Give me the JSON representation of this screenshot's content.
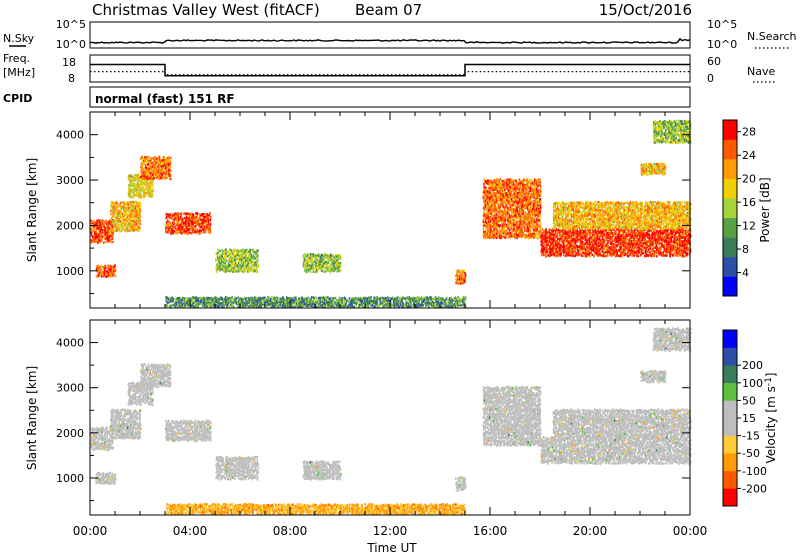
{
  "header": {
    "site": "Christmas Valley West (fitACF)",
    "beam": "Beam 07",
    "date": "15/Oct/2016"
  },
  "noise_panel": {
    "left_label": "N.Sky",
    "right_label": "N.Search",
    "tick_top_left": "10^5",
    "tick_bottom_left": "10^0",
    "tick_top_right": "10^5",
    "tick_bottom_right": "10^0"
  },
  "freq_panel": {
    "left_label_1": "Freq.",
    "left_label_2": "[MHz]",
    "right_label": "Nave",
    "tick_top_left": "18",
    "tick_bottom_left": "8",
    "tick_top_right": "60",
    "tick_bottom_right": "0"
  },
  "cpid": {
    "label": "CPID",
    "text": "normal (fast) 151 RF"
  },
  "colors": {
    "power_scale": [
      "#0000ff",
      "#2e4fa8",
      "#3a7d5a",
      "#5aa045",
      "#a6d23a",
      "#f0d000",
      "#ff9a00",
      "#ff5a00",
      "#ff0000"
    ],
    "velocity_scale": [
      "#ff0000",
      "#ff5a00",
      "#ff9a00",
      "#ffcc33",
      "#bebebe",
      "#bebebe",
      "#60c040",
      "#3a7d5a",
      "#2e4fa8",
      "#0000ff"
    ],
    "ground_scatter": "#bebebe"
  },
  "chart_data": [
    {
      "type": "heatmap",
      "name": "power",
      "xlabel": "",
      "ylabel": "Slant Range [km]",
      "x_ticks": [
        "00:00",
        "04:00",
        "08:00",
        "12:00",
        "16:00",
        "20:00",
        "00:00"
      ],
      "xlim_hours": [
        0,
        24
      ],
      "y_ticks": [
        1000,
        2000,
        3000,
        4000
      ],
      "ylim": [
        180,
        4500
      ],
      "colorbar": {
        "label": "Power [dB]",
        "ticks": [
          4,
          8,
          12,
          16,
          20,
          24,
          28
        ],
        "range": [
          0,
          30
        ]
      },
      "regions": [
        {
          "t0": 0.0,
          "t1": 0.9,
          "r0": 1600,
          "r1": 2100,
          "level": 26
        },
        {
          "t0": 0.2,
          "t1": 1.0,
          "r0": 850,
          "r1": 1100,
          "level": 25
        },
        {
          "t0": 0.8,
          "t1": 2.0,
          "r0": 1850,
          "r1": 2500,
          "level": 20
        },
        {
          "t0": 1.5,
          "t1": 2.5,
          "r0": 2600,
          "r1": 3100,
          "level": 18
        },
        {
          "t0": 2.0,
          "t1": 3.2,
          "r0": 3000,
          "r1": 3500,
          "level": 24
        },
        {
          "t0": 3.0,
          "t1": 4.8,
          "r0": 1800,
          "r1": 2250,
          "level": 26
        },
        {
          "t0": 5.0,
          "t1": 6.7,
          "r0": 950,
          "r1": 1450,
          "level": 14
        },
        {
          "t0": 8.5,
          "t1": 10.0,
          "r0": 950,
          "r1": 1350,
          "level": 14
        },
        {
          "t0": 3.0,
          "t1": 15.0,
          "r0": 180,
          "r1": 400,
          "level": 10
        },
        {
          "t0": 14.6,
          "t1": 15.0,
          "r0": 700,
          "r1": 1000,
          "level": 24
        },
        {
          "t0": 15.7,
          "t1": 18.0,
          "r0": 1700,
          "r1": 3000,
          "level": 24
        },
        {
          "t0": 18.0,
          "t1": 24.0,
          "r0": 1300,
          "r1": 1900,
          "level": 27
        },
        {
          "t0": 18.5,
          "t1": 24.0,
          "r0": 1900,
          "r1": 2500,
          "level": 20
        },
        {
          "t0": 22.0,
          "t1": 23.0,
          "r0": 3100,
          "r1": 3350,
          "level": 20
        },
        {
          "t0": 22.5,
          "t1": 24.0,
          "r0": 3800,
          "r1": 4300,
          "level": 14
        }
      ]
    },
    {
      "type": "heatmap",
      "name": "velocity",
      "xlabel": "Time UT",
      "ylabel": "Slant Range [km]",
      "x_ticks": [
        "00:00",
        "04:00",
        "08:00",
        "12:00",
        "16:00",
        "20:00",
        "00:00"
      ],
      "xlim_hours": [
        0,
        24
      ],
      "y_ticks": [
        1000,
        2000,
        3000,
        4000
      ],
      "ylim": [
        180,
        4500
      ],
      "colorbar": {
        "label": "Velocity [m s^-1]",
        "ticks": [
          -200,
          -100,
          -50,
          -15,
          15,
          50,
          100,
          200
        ],
        "range": [
          -250,
          250
        ]
      },
      "regions": [
        {
          "t0": 0.0,
          "t1": 0.9,
          "r0": 1600,
          "r1": 2100,
          "gs": true
        },
        {
          "t0": 0.2,
          "t1": 1.0,
          "r0": 850,
          "r1": 1100,
          "gs": true
        },
        {
          "t0": 0.8,
          "t1": 2.0,
          "r0": 1850,
          "r1": 2500,
          "gs": true
        },
        {
          "t0": 1.5,
          "t1": 2.5,
          "r0": 2600,
          "r1": 3100,
          "gs": true
        },
        {
          "t0": 2.0,
          "t1": 3.2,
          "r0": 3000,
          "r1": 3500,
          "gs": true
        },
        {
          "t0": 3.0,
          "t1": 4.8,
          "r0": 1800,
          "r1": 2250,
          "gs": true
        },
        {
          "t0": 5.0,
          "t1": 6.7,
          "r0": 950,
          "r1": 1450,
          "gs": true
        },
        {
          "t0": 8.5,
          "t1": 10.0,
          "r0": 950,
          "r1": 1350,
          "gs": true
        },
        {
          "t0": 3.0,
          "t1": 15.0,
          "r0": 180,
          "r1": 400,
          "gs": false,
          "vel": -60
        },
        {
          "t0": 14.6,
          "t1": 15.0,
          "r0": 700,
          "r1": 1000,
          "gs": true
        },
        {
          "t0": 15.7,
          "t1": 18.0,
          "r0": 1700,
          "r1": 3000,
          "gs": true
        },
        {
          "t0": 18.0,
          "t1": 24.0,
          "r0": 1300,
          "r1": 1900,
          "gs": true
        },
        {
          "t0": 18.5,
          "t1": 24.0,
          "r0": 1900,
          "r1": 2500,
          "gs": true
        },
        {
          "t0": 22.0,
          "t1": 23.0,
          "r0": 3100,
          "r1": 3350,
          "gs": true
        },
        {
          "t0": 22.5,
          "t1": 24.0,
          "r0": 3800,
          "r1": 4300,
          "gs": true
        }
      ]
    }
  ],
  "freq_series": {
    "freq_segments": [
      {
        "t0": 0.0,
        "t1": 3.0,
        "mhz": 14.5
      },
      {
        "t0": 3.0,
        "t1": 15.0,
        "mhz": 10.3
      },
      {
        "t0": 15.0,
        "t1": 24.0,
        "mhz": 14.5
      }
    ],
    "nave_segments": [
      {
        "t0": 0.0,
        "t1": 3.0,
        "nave": 23
      },
      {
        "t0": 3.0,
        "t1": 15.0,
        "nave": 16
      },
      {
        "t0": 15.0,
        "t1": 24.0,
        "nave": 23
      }
    ]
  }
}
